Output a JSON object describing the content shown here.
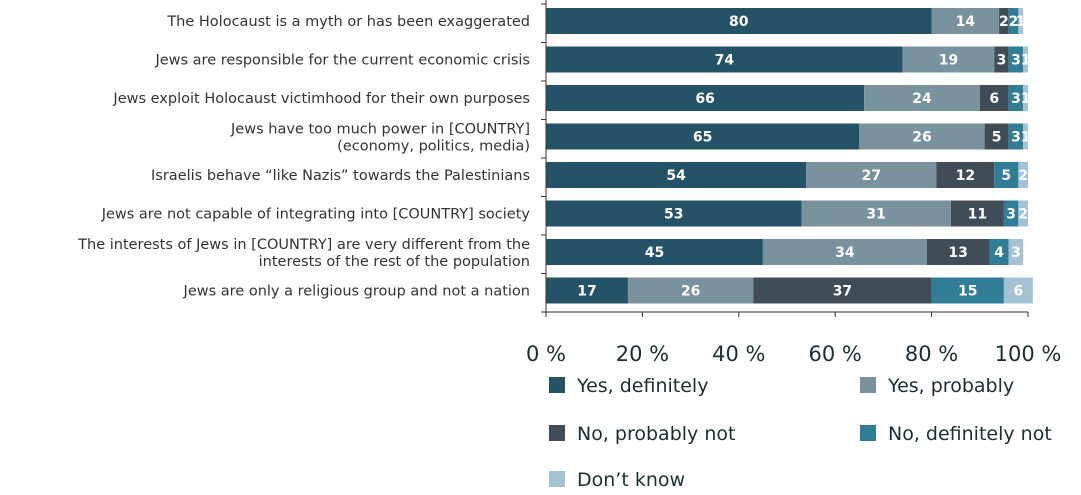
{
  "chart_data": {
    "type": "bar",
    "orientation": "horizontal",
    "stacked": true,
    "categories": [
      "The Holocaust is a myth or has been exaggerated",
      "Jews are responsible for the current economic crisis",
      "Jews exploit Holocaust victimhood for their own purposes",
      [
        "Jews have too much power in [COUNTRY]",
        "(economy, politics, media)"
      ],
      "Israelis behave “like Nazis” towards the Palestinians",
      "Jews are not capable of integrating into [COUNTRY] society",
      [
        "The interests of Jews in [COUNTRY] are very different from the",
        "interests of the rest of the population"
      ],
      "Jews are only a religious group and not a nation"
    ],
    "series": [
      {
        "name": "Yes, definitely",
        "color": "#245367",
        "values": [
          80,
          74,
          66,
          65,
          54,
          53,
          45,
          17
        ]
      },
      {
        "name": "Yes, probably",
        "color": "#78929e",
        "values": [
          14,
          19,
          24,
          26,
          27,
          31,
          34,
          26
        ]
      },
      {
        "name": "No, probably not",
        "color": "#414d56",
        "values": [
          2,
          3,
          6,
          5,
          12,
          11,
          13,
          37
        ]
      },
      {
        "name": "No, definitely not",
        "color": "#2f7d96",
        "values": [
          2,
          3,
          3,
          3,
          5,
          3,
          4,
          15
        ]
      },
      {
        "name": "Don’t know",
        "color": "#a3c3d5",
        "values": [
          1,
          1,
          1,
          1,
          2,
          2,
          3,
          6
        ]
      }
    ],
    "xlim": [
      0,
      100
    ],
    "xticks": [
      "0 %",
      "20 %",
      "40 %",
      "60 %",
      "80 %",
      "100 %"
    ],
    "legend_position": "bottom"
  }
}
